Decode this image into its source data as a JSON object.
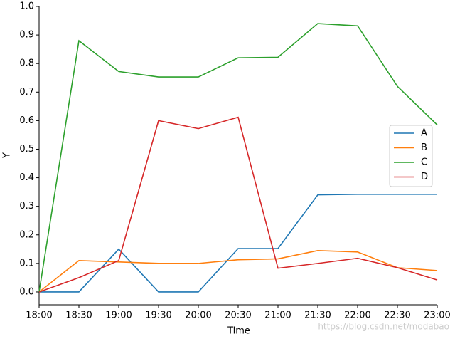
{
  "chart_data": {
    "type": "line",
    "x_label": "Time",
    "y_label": "Y",
    "categories": [
      "18:00",
      "18:30",
      "19:00",
      "19:30",
      "20:00",
      "20:30",
      "21:00",
      "21:30",
      "22:00",
      "22:30",
      "23:00"
    ],
    "series": [
      {
        "name": "A",
        "color": "#1f77b4",
        "values": [
          0,
          0,
          0.15,
          0,
          0,
          0.152,
          0.152,
          0.34,
          0.342,
          0.342,
          0.342
        ]
      },
      {
        "name": "B",
        "color": "#ff7f0e",
        "values": [
          0,
          0.11,
          0.105,
          0.1,
          0.1,
          0.113,
          0.116,
          0.145,
          0.14,
          0.085,
          0.075
        ]
      },
      {
        "name": "C",
        "color": "#2ca02c",
        "values": [
          0,
          0.88,
          0.772,
          0.753,
          0.753,
          0.82,
          0.822,
          0.94,
          0.932,
          0.72,
          0.585
        ]
      },
      {
        "name": "D",
        "color": "#d62728",
        "values": [
          0,
          0.05,
          0.11,
          0.6,
          0.572,
          0.612,
          0.083,
          0.1,
          0.118,
          0.085,
          0.042
        ]
      }
    ],
    "ylim": [
      -0.045,
      1.0
    ],
    "yticks": [
      {
        "value": 0,
        "label": "0.0"
      },
      {
        "value": 0.1,
        "label": "0.1"
      },
      {
        "value": 0.2,
        "label": "0.2"
      },
      {
        "value": 0.3,
        "label": "0.3"
      },
      {
        "value": 0.4,
        "label": "0.4"
      },
      {
        "value": 0.5,
        "label": "0.5"
      },
      {
        "value": 0.6,
        "label": "0.6"
      },
      {
        "value": 0.7,
        "label": "0.7"
      },
      {
        "value": 0.8,
        "label": "0.8"
      },
      {
        "value": 0.9,
        "label": "0.9"
      },
      {
        "value": 1.0,
        "label": "1.0"
      }
    ],
    "legend": "right",
    "watermark": "https://blog.csdn.net/modabao"
  }
}
